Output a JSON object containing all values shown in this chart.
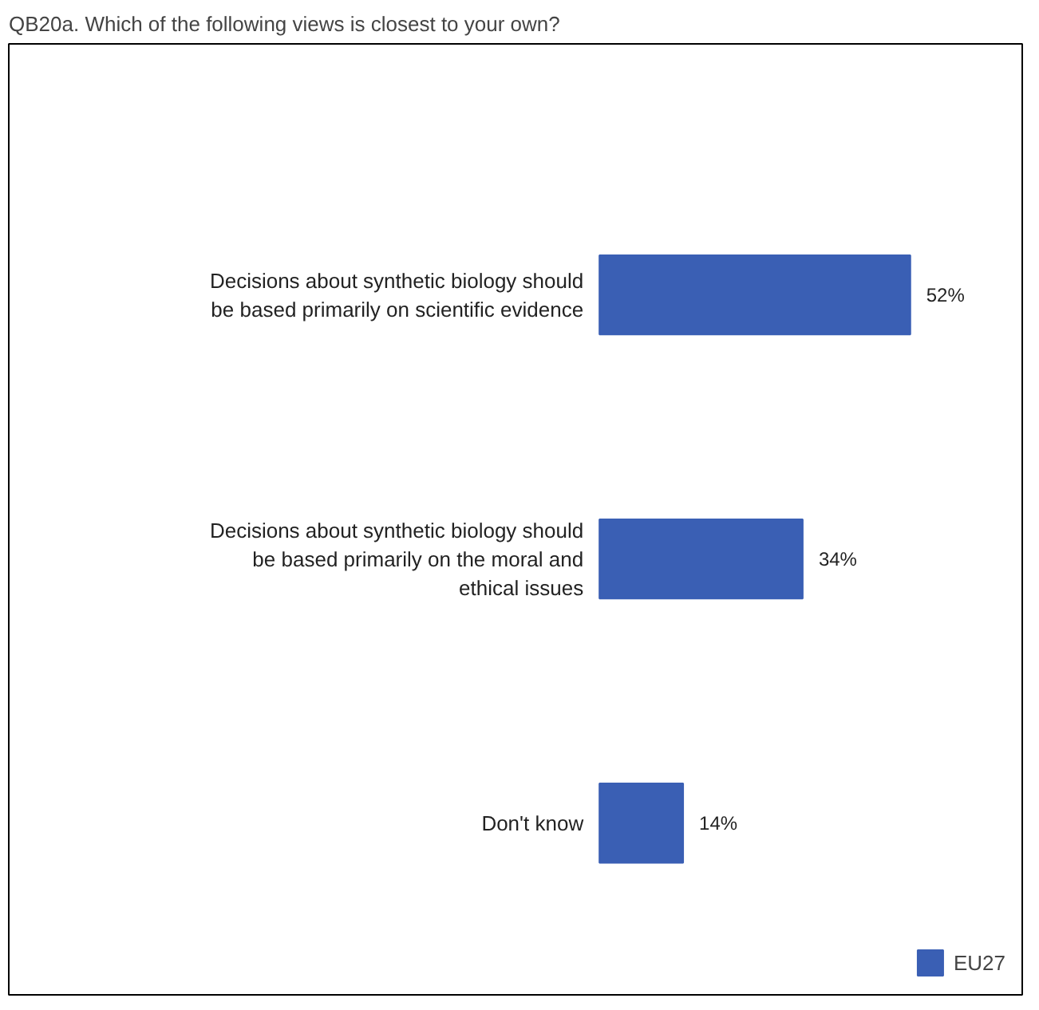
{
  "chart_data": {
    "type": "bar",
    "orientation": "horizontal",
    "title": "QB20a. Which of the following views is closest to your own?",
    "categories": [
      "Decisions about synthetic biology should be based primarily on scientific evidence",
      "Decisions about synthetic biology should be based primarily on the moral and ethical issues",
      "Don't know"
    ],
    "series": [
      {
        "name": "EU27",
        "color": "#3a5fb4",
        "values": [
          52,
          34,
          14
        ],
        "value_labels": [
          "52%",
          "34%",
          "14%"
        ]
      }
    ],
    "legend": "bottom right",
    "grid": false
  }
}
